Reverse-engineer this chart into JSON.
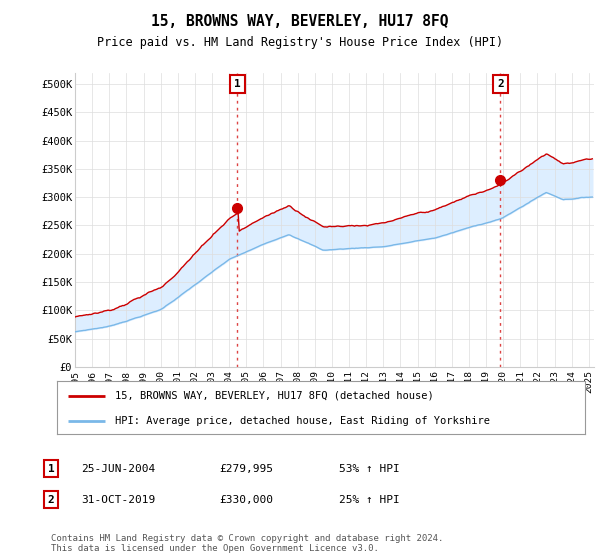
{
  "title": "15, BROWNS WAY, BEVERLEY, HU17 8FQ",
  "subtitle": "Price paid vs. HM Land Registry's House Price Index (HPI)",
  "ylabel_ticks": [
    "£0",
    "£50K",
    "£100K",
    "£150K",
    "£200K",
    "£250K",
    "£300K",
    "£350K",
    "£400K",
    "£450K",
    "£500K"
  ],
  "ytick_values": [
    0,
    50000,
    100000,
    150000,
    200000,
    250000,
    300000,
    350000,
    400000,
    450000,
    500000
  ],
  "ylim": [
    0,
    520000
  ],
  "xlim_start": 1995.3,
  "xlim_end": 2025.3,
  "xtick_years": [
    1995,
    1996,
    1997,
    1998,
    1999,
    2000,
    2001,
    2002,
    2003,
    2004,
    2005,
    2006,
    2007,
    2008,
    2009,
    2010,
    2011,
    2012,
    2013,
    2014,
    2015,
    2016,
    2017,
    2018,
    2019,
    2020,
    2021,
    2022,
    2023,
    2024,
    2025
  ],
  "sale1_x": 2004.48,
  "sale1_y": 279995,
  "sale1_label": "1",
  "sale2_x": 2019.83,
  "sale2_y": 330000,
  "sale2_label": "2",
  "hpi_line_color": "#7ab8e8",
  "sale_line_color": "#cc0000",
  "fill_color": "#ddeeff",
  "vline_color": "#dd4444",
  "legend_label1": "15, BROWNS WAY, BEVERLEY, HU17 8FQ (detached house)",
  "legend_label2": "HPI: Average price, detached house, East Riding of Yorkshire",
  "table_row1": [
    "1",
    "25-JUN-2004",
    "£279,995",
    "53% ↑ HPI"
  ],
  "table_row2": [
    "2",
    "31-OCT-2019",
    "£330,000",
    "25% ↑ HPI"
  ],
  "footnote": "Contains HM Land Registry data © Crown copyright and database right 2024.\nThis data is licensed under the Open Government Licence v3.0.",
  "background_color": "#ffffff",
  "grid_color": "#dddddd"
}
